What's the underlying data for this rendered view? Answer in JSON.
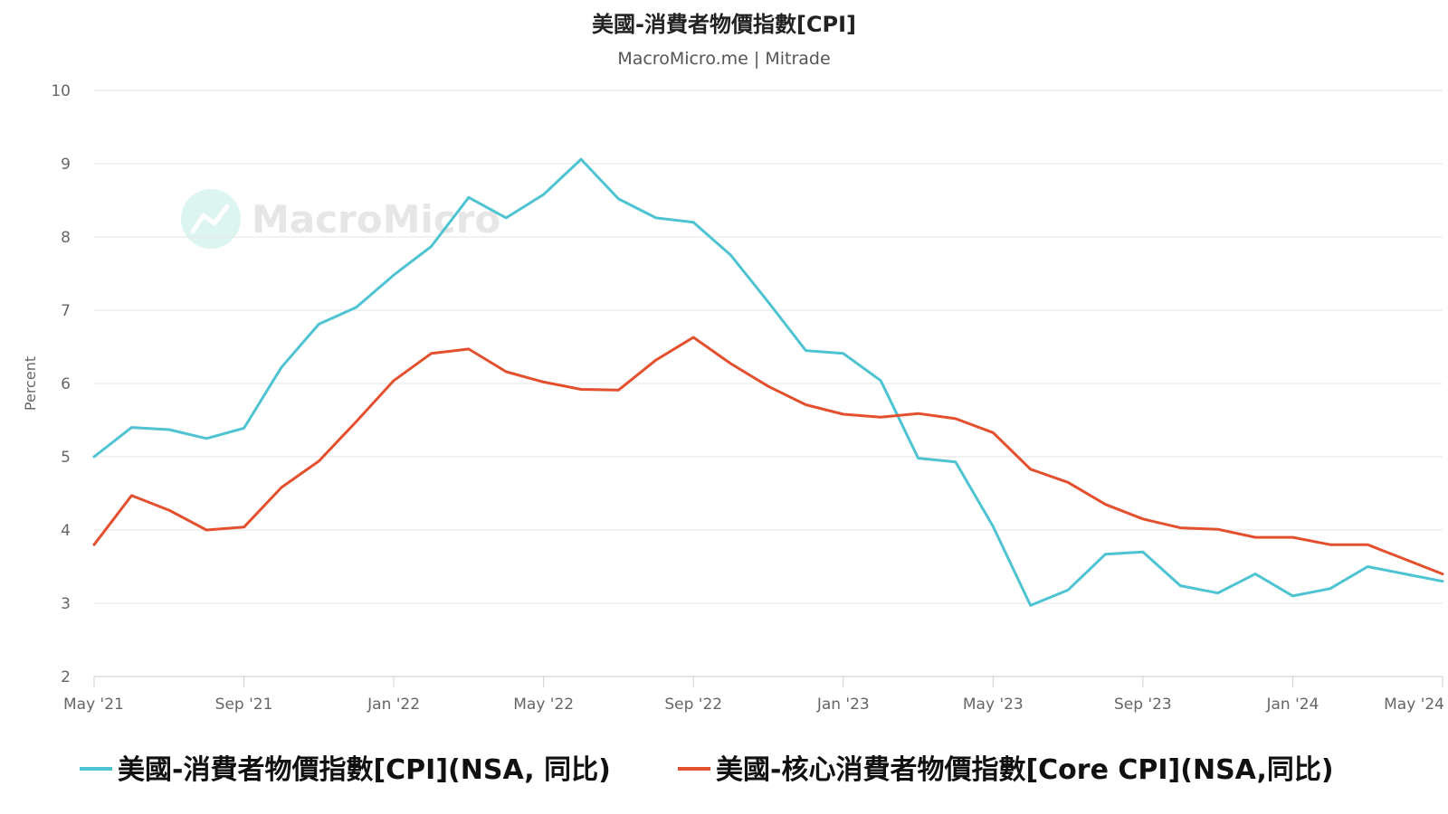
{
  "chart_data": {
    "type": "line",
    "title": "美國-消費者物價指數[CPI]",
    "subtitle": "MacroMicro.me | Mitrade",
    "ylabel": "Percent",
    "ylim": [
      2,
      10
    ],
    "yticks": [
      2,
      3,
      4,
      5,
      6,
      7,
      8,
      9,
      10
    ],
    "grid": true,
    "legend_position": "bottom",
    "watermark": "MacroMicro",
    "x": [
      "2021-05",
      "2021-06",
      "2021-07",
      "2021-08",
      "2021-09",
      "2021-10",
      "2021-11",
      "2021-12",
      "2022-01",
      "2022-02",
      "2022-03",
      "2022-04",
      "2022-05",
      "2022-06",
      "2022-07",
      "2022-08",
      "2022-09",
      "2022-10",
      "2022-11",
      "2022-12",
      "2023-01",
      "2023-02",
      "2023-03",
      "2023-04",
      "2023-05",
      "2023-06",
      "2023-07",
      "2023-08",
      "2023-09",
      "2023-10",
      "2023-11",
      "2023-12",
      "2024-01",
      "2024-02",
      "2024-03",
      "2024-04",
      "2024-05"
    ],
    "xtick_labels": [
      {
        "x": "2021-05",
        "label": "May '21"
      },
      {
        "x": "2021-09",
        "label": "Sep '21"
      },
      {
        "x": "2022-01",
        "label": "Jan '22"
      },
      {
        "x": "2022-05",
        "label": "May '22"
      },
      {
        "x": "2022-09",
        "label": "Sep '22"
      },
      {
        "x": "2023-01",
        "label": "Jan '23"
      },
      {
        "x": "2023-05",
        "label": "May '23"
      },
      {
        "x": "2023-09",
        "label": "Sep '23"
      },
      {
        "x": "2024-01",
        "label": "Jan '24"
      },
      {
        "x": "2024-05",
        "label": "May '24"
      }
    ],
    "series": [
      {
        "name": "美國-消費者物價指數[CPI](NSA, 同比)",
        "color": "#4ec3d1",
        "values": [
          5.0,
          5.4,
          5.37,
          5.25,
          5.39,
          6.22,
          6.81,
          7.04,
          7.48,
          7.87,
          8.54,
          8.26,
          8.58,
          9.06,
          8.52,
          8.26,
          8.2,
          7.75,
          7.11,
          6.45,
          6.41,
          6.04,
          4.98,
          4.93,
          4.05,
          2.97,
          3.18,
          3.67,
          3.7,
          3.24,
          3.14,
          3.4,
          3.1,
          3.2,
          3.5,
          3.4,
          3.3
        ]
      },
      {
        "name": "美國-核心消費者物價指數[Core CPI](NSA,同比)",
        "color": "#e4502e",
        "values": [
          3.8,
          4.47,
          4.27,
          4.0,
          4.04,
          4.58,
          4.94,
          5.48,
          6.04,
          6.41,
          6.47,
          6.16,
          6.02,
          5.92,
          5.91,
          6.32,
          6.63,
          6.27,
          5.96,
          5.71,
          5.58,
          5.54,
          5.59,
          5.52,
          5.33,
          4.83,
          4.65,
          4.35,
          4.15,
          4.03,
          4.01,
          3.9,
          3.9,
          3.8,
          3.8,
          3.6,
          3.4
        ]
      }
    ]
  }
}
